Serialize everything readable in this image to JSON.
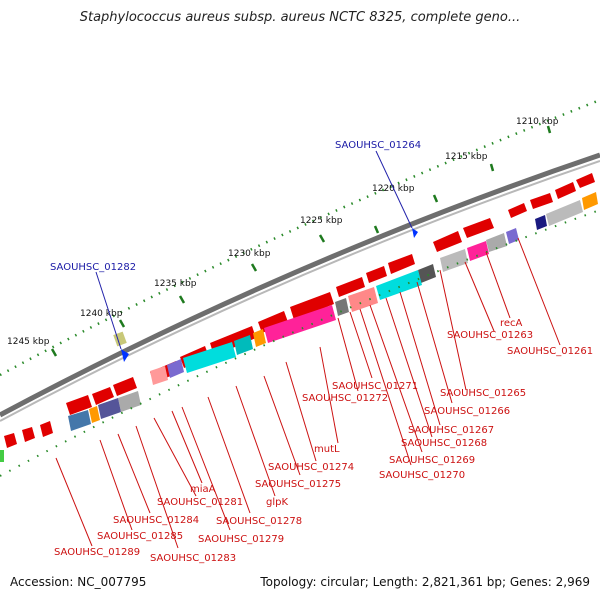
{
  "title": "Staphylococcus aureus subsp. aureus NCTC 8325, complete geno...",
  "accession": "Accession: NC_007795",
  "topology": "Topology: circular; Length: 2,821,361 bp; Genes: 2,969",
  "colors": {
    "cds": "#ff0000",
    "label_red": "#cc1111",
    "label_blue": "#1a1aa6",
    "backbone": "#808080"
  },
  "scale_labels": [
    "1210 kbp",
    "1215 kbp",
    "1220 kbp",
    "1225 kbp",
    "1230 kbp",
    "1235 kbp",
    "1240 kbp",
    "1245 kbp"
  ],
  "blue_labels": [
    "SAOUHSC_01264",
    "SAOUHSC_01282"
  ],
  "red_labels": [
    "recA",
    "SAOUHSC_01263",
    "SAOUHSC_01261",
    "SAOUHSC_01265",
    "SAOUHSC_01266",
    "SAOUHSC_01267",
    "SAOUHSC_01268",
    "SAOUHSC_01269",
    "SAOUHSC_01270",
    "SAOUHSC_01271",
    "SAOUHSC_01272",
    "mutL",
    "SAOUHSC_01274",
    "SAOUHSC_01275",
    "glpK",
    "SAOUHSC_01278",
    "SAOUHSC_01279",
    "miaA",
    "SAOUHSC_01281",
    "SAOUHSC_01283",
    "SAOUHSC_01284",
    "SAOUHSC_01285",
    "SAOUHSC_01289"
  ]
}
